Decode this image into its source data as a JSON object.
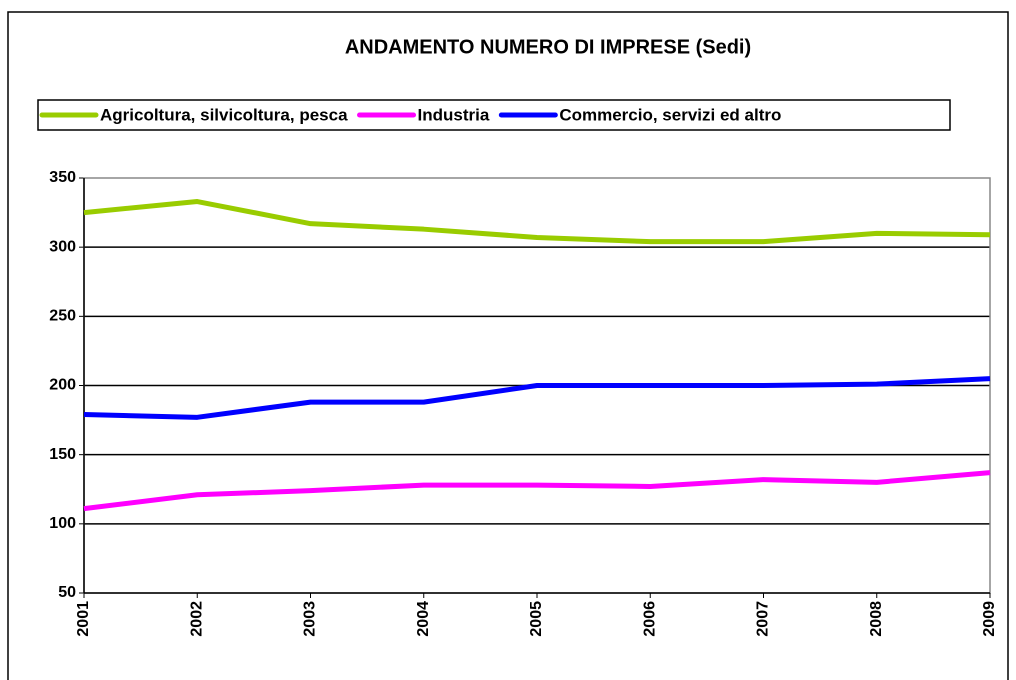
{
  "chart_data": {
    "type": "line",
    "title": "ANDAMENTO NUMERO DI IMPRESE (Sedi)",
    "x": [
      "2001",
      "2002",
      "2003",
      "2004",
      "2005",
      "2006",
      "2007",
      "2008",
      "2009"
    ],
    "series": [
      {
        "name": "Agricoltura, silvicoltura, pesca",
        "color": "#99cc00",
        "values": [
          325,
          333,
          317,
          313,
          307,
          304,
          304,
          310,
          309
        ]
      },
      {
        "name": "Industria",
        "color": "#ff00ff",
        "values": [
          111,
          121,
          124,
          128,
          128,
          127,
          132,
          130,
          137
        ]
      },
      {
        "name": "Commercio, servizi ed altro",
        "color": "#0000ff",
        "values": [
          179,
          177,
          188,
          188,
          200,
          200,
          200,
          201,
          205
        ]
      }
    ],
    "ylim": [
      50,
      350
    ],
    "yticks": [
      50,
      100,
      150,
      200,
      250,
      300,
      350
    ],
    "grid": true,
    "legend": "top"
  }
}
